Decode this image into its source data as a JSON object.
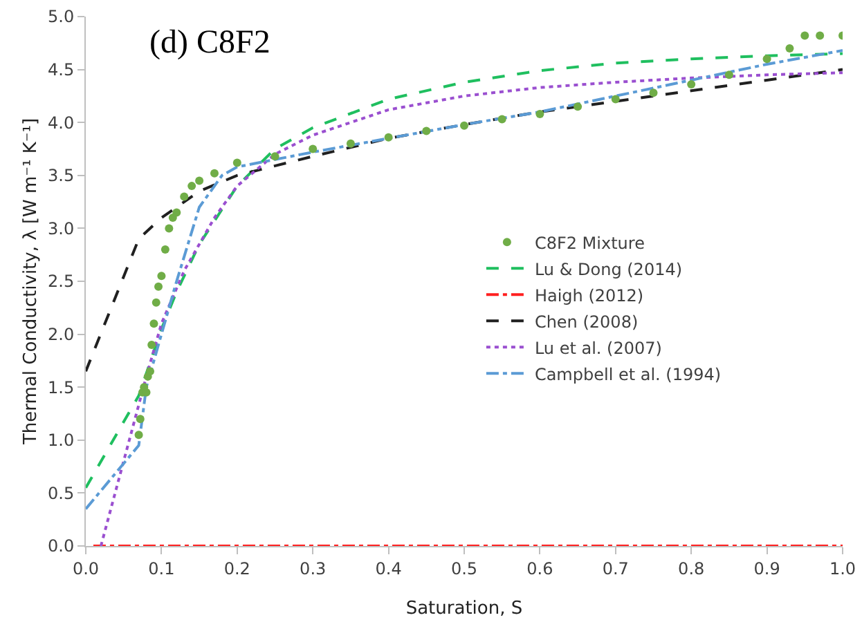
{
  "chart_data": {
    "type": "line",
    "title": "(d) C8F2",
    "xlabel": "Saturation, S",
    "ylabel": "Thermal Conductivity, λ [W m⁻¹ K⁻¹]",
    "xlim": [
      0,
      1
    ],
    "xticks": [
      {
        "value": 0,
        "label": "0.0"
      },
      0.1,
      0.2,
      0.3,
      0.4,
      0.5,
      0.6,
      0.7,
      0.8,
      0.9,
      {
        "value": 1,
        "label": "1.0"
      }
    ],
    "ylim": [
      0,
      5
    ],
    "yticks": [
      {
        "value": 0,
        "label": "0.0"
      },
      0.5,
      {
        "value": 1,
        "label": "1.0"
      },
      1.5,
      {
        "value": 2,
        "label": "2.0"
      },
      2.5,
      {
        "value": 3,
        "label": "3.0"
      },
      3.5,
      {
        "value": 4,
        "label": "4.0"
      },
      4.5,
      {
        "value": 5,
        "label": "5.0"
      }
    ],
    "grid": false,
    "legend": "right",
    "series": [
      {
        "name": "C8F2 Mixture",
        "type": "scatter",
        "marker": "circle",
        "color": "#70ad47",
        "x": [
          0.07,
          0.072,
          0.075,
          0.077,
          0.08,
          0.082,
          0.085,
          0.087,
          0.09,
          0.093,
          0.096,
          0.1,
          0.105,
          0.11,
          0.115,
          0.12,
          0.13,
          0.14,
          0.15,
          0.17,
          0.2,
          0.25,
          0.3,
          0.35,
          0.4,
          0.45,
          0.5,
          0.55,
          0.6,
          0.65,
          0.7,
          0.75,
          0.8,
          0.85,
          0.9,
          0.93,
          0.95,
          0.97,
          1.0
        ],
        "values": [
          1.05,
          1.2,
          1.45,
          1.5,
          1.45,
          1.6,
          1.65,
          1.9,
          2.1,
          2.3,
          2.45,
          2.55,
          2.8,
          3.0,
          3.1,
          3.15,
          3.3,
          3.4,
          3.45,
          3.52,
          3.62,
          3.68,
          3.75,
          3.8,
          3.86,
          3.92,
          3.97,
          4.03,
          4.08,
          4.15,
          4.22,
          4.28,
          4.36,
          4.45,
          4.6,
          4.7,
          4.82,
          4.82,
          4.82
        ]
      },
      {
        "name": "Lu & Dong (2014)",
        "line_style": "dashed",
        "color": "#1fbf5f",
        "x": [
          0,
          0.07,
          0.1,
          0.12,
          0.15,
          0.2,
          0.25,
          0.3,
          0.4,
          0.5,
          0.6,
          0.7,
          0.8,
          0.9,
          1.0
        ],
        "values": [
          0.55,
          1.42,
          2.05,
          2.4,
          2.85,
          3.4,
          3.75,
          3.95,
          4.22,
          4.38,
          4.49,
          4.56,
          4.6,
          4.63,
          4.65
        ]
      },
      {
        "name": "Haigh (2012)",
        "line_style": "dashdot",
        "color": "#ff2020",
        "x": [
          0.01,
          1.0
        ],
        "values": [
          0,
          0
        ]
      },
      {
        "name": "Chen (2008)",
        "line_style": "dashed",
        "color": "#202020",
        "x": [
          0,
          0.07,
          0.1,
          0.15,
          0.2,
          0.3,
          0.4,
          0.5,
          0.6,
          0.7,
          0.8,
          0.9,
          1.0
        ],
        "values": [
          1.65,
          2.9,
          3.1,
          3.35,
          3.5,
          3.68,
          3.85,
          3.98,
          4.1,
          4.2,
          4.3,
          4.4,
          4.5
        ]
      },
      {
        "name": "Lu et al. (2007)",
        "line_style": "dotted",
        "color": "#9a4fd0",
        "x": [
          0.02,
          0.05,
          0.08,
          0.1,
          0.13,
          0.17,
          0.2,
          0.25,
          0.3,
          0.4,
          0.5,
          0.6,
          0.7,
          0.8,
          0.9,
          1.0
        ],
        "values": [
          0,
          0.8,
          1.6,
          2.1,
          2.6,
          3.1,
          3.4,
          3.7,
          3.88,
          4.12,
          4.25,
          4.33,
          4.38,
          4.42,
          4.45,
          4.47
        ]
      },
      {
        "name": "Campbell et al. (1994)",
        "line_style": "dashdot",
        "color": "#5b9bd5",
        "x": [
          0,
          0.07,
          0.08,
          0.1,
          0.12,
          0.15,
          0.18,
          0.2,
          0.25,
          0.3,
          0.4,
          0.5,
          0.6,
          0.7,
          0.8,
          0.9,
          1.0
        ],
        "values": [
          0.35,
          0.95,
          1.5,
          2.0,
          2.5,
          3.2,
          3.5,
          3.58,
          3.65,
          3.72,
          3.85,
          3.98,
          4.1,
          4.25,
          4.4,
          4.55,
          4.68
        ]
      }
    ]
  }
}
